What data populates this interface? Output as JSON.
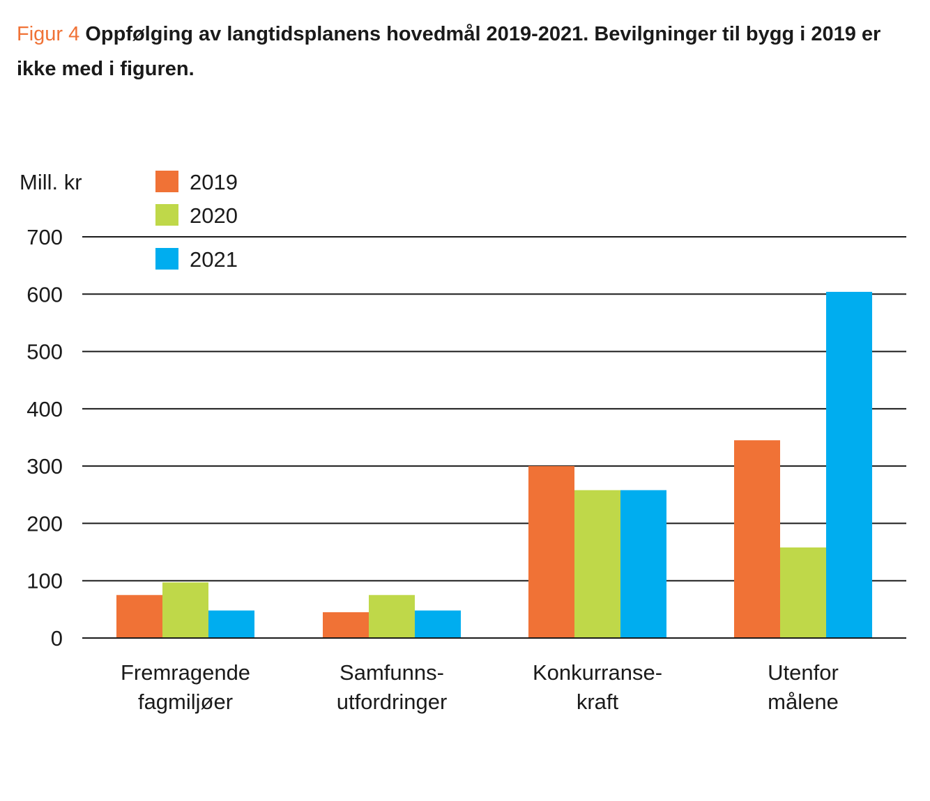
{
  "figure_label": "Figur 4",
  "figure_title": "Oppfølging av langtidsplanens hovedmål 2019-2021. Bevilgninger til bygg i 2019 er ikke med i figuren.",
  "colors": {
    "2019": "#f07236",
    "2020": "#bfd849",
    "2021": "#00adef",
    "accent": "#f07236"
  },
  "chart_data": {
    "type": "bar",
    "ylabel": "Mill. kr",
    "ylim": [
      0,
      700
    ],
    "yticks": [
      0,
      100,
      200,
      300,
      400,
      500,
      600,
      700
    ],
    "grid": true,
    "legend_position": "top-left",
    "categories": [
      [
        "Fremragende",
        "fagmiljøer"
      ],
      [
        "Samfunns-",
        "utfordringer"
      ],
      [
        "Konkurranse-",
        "kraft"
      ],
      [
        "Utenfor",
        "målene"
      ]
    ],
    "series": [
      {
        "name": "2019",
        "color": "#f07236",
        "values": [
          75,
          45,
          300,
          345
        ]
      },
      {
        "name": "2020",
        "color": "#bfd849",
        "values": [
          97,
          75,
          258,
          158
        ]
      },
      {
        "name": "2021",
        "color": "#00adef",
        "values": [
          48,
          48,
          258,
          604
        ]
      }
    ]
  }
}
